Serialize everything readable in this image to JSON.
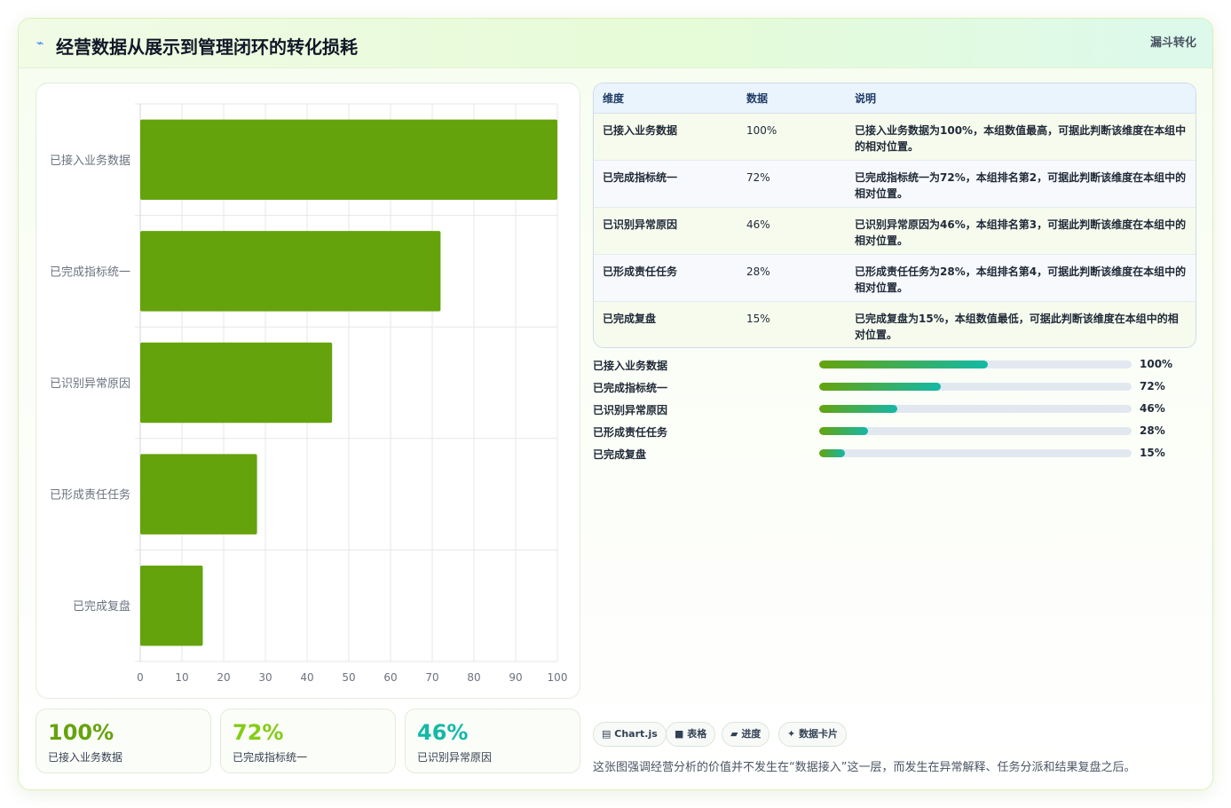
{
  "header": {
    "icon": "sparkle-icon",
    "title": "经营数据从展示到管理闭环的转化损耗",
    "tag": "漏斗转化"
  },
  "chart_data": {
    "type": "bar",
    "orientation": "horizontal",
    "categories": [
      "已接入业务数据",
      "已完成指标统一",
      "已识别异常原因",
      "已形成责任任务",
      "已完成复盘"
    ],
    "values": [
      100,
      72,
      46,
      28,
      15
    ],
    "xlim": [
      0,
      100
    ],
    "xticks": [
      0,
      10,
      20,
      30,
      40,
      50,
      60,
      70,
      80,
      90,
      100
    ],
    "grid": true,
    "color": "#65a30d"
  },
  "kpis": [
    {
      "value": "100%",
      "label": "已接入业务数据",
      "color": "#65a30d"
    },
    {
      "value": "72%",
      "label": "已完成指标统一",
      "color": "#84cc16"
    },
    {
      "value": "46%",
      "label": "已识别异常原因",
      "color": "#14b8a6"
    }
  ],
  "table": {
    "headers": [
      "维度",
      "数据",
      "说明"
    ],
    "rows": [
      [
        "已接入业务数据",
        "100%",
        "已接入业务数据为100%，本组数值最高，可据此判断该维度在本组中的相对位置。"
      ],
      [
        "已完成指标统一",
        "72%",
        "已完成指标统一为72%，本组排名第2，可据此判断该维度在本组中的相对位置。"
      ],
      [
        "已识别异常原因",
        "46%",
        "已识别异常原因为46%，本组排名第3，可据此判断该维度在本组中的相对位置。"
      ],
      [
        "已形成责任任务",
        "28%",
        "已形成责任任务为28%，本组排名第4，可据此判断该维度在本组中的相对位置。"
      ],
      [
        "已完成复盘",
        "15%",
        "已完成复盘为15%，本组数值最低，可据此判断该维度在本组中的相对位置。"
      ]
    ]
  },
  "progress": [
    {
      "label": "已接入业务数据",
      "text": "100%",
      "fraction": 0.54
    },
    {
      "label": "已完成指标统一",
      "text": "72%",
      "fraction": 0.39
    },
    {
      "label": "已识别异常原因",
      "text": "46%",
      "fraction": 0.25
    },
    {
      "label": "已形成责任任务",
      "text": "28%",
      "fraction": 0.155
    },
    {
      "label": "已完成复盘",
      "text": "15%",
      "fraction": 0.083
    }
  ],
  "chips": [
    {
      "icon": "chart-icon",
      "glyph": "▤",
      "label": "Chart.js"
    },
    {
      "icon": "table-icon",
      "glyph": "■",
      "label": "表格"
    },
    {
      "icon": "progress-icon",
      "glyph": "▰",
      "label": "进度"
    },
    {
      "icon": "card-icon",
      "glyph": "✦",
      "label": "数据卡片"
    }
  ],
  "note": "这张图强调经营分析的价值并不发生在“数据接入”这一层，而发生在异常解释、任务分派和结果复盘之后。"
}
